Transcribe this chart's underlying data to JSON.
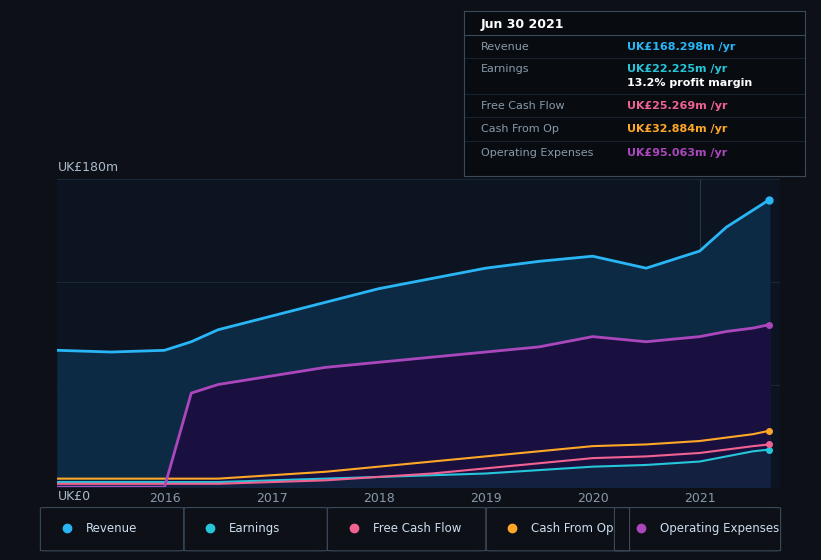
{
  "bg_color": "#0d1117",
  "plot_bg_color": "#0d1421",
  "ylabel": "UK£180m",
  "y0_label": "UK£0",
  "xlim": [
    2015.0,
    2021.75
  ],
  "ylim": [
    0,
    180
  ],
  "years": [
    2015.0,
    2015.5,
    2016.0,
    2016.25,
    2016.5,
    2017.0,
    2017.5,
    2018.0,
    2018.5,
    2019.0,
    2019.5,
    2020.0,
    2020.5,
    2021.0,
    2021.25,
    2021.5,
    2021.65
  ],
  "revenue": [
    80,
    79,
    80,
    85,
    92,
    100,
    108,
    116,
    122,
    128,
    132,
    135,
    128,
    138,
    152,
    162,
    168
  ],
  "earnings": [
    3,
    3,
    3,
    3,
    3,
    4,
    5,
    6,
    7,
    8,
    10,
    12,
    13,
    15,
    18,
    21,
    22
  ],
  "free_cash_flow": [
    2,
    2,
    2,
    2,
    2,
    3,
    4,
    6,
    8,
    11,
    14,
    17,
    18,
    20,
    22,
    24,
    25
  ],
  "cash_from_op": [
    5,
    5,
    5,
    5,
    5,
    7,
    9,
    12,
    15,
    18,
    21,
    24,
    25,
    27,
    29,
    31,
    33
  ],
  "op_expenses": [
    0,
    0,
    0,
    55,
    60,
    65,
    70,
    73,
    76,
    79,
    82,
    88,
    85,
    88,
    91,
    93,
    95
  ],
  "revenue_color": "#29b6f6",
  "earnings_color": "#26c6da",
  "free_cash_flow_color": "#f06292",
  "cash_from_op_color": "#ffa726",
  "op_expenses_color": "#ab47bc",
  "grid_color": "#1e2d3d",
  "info_box": {
    "date": "Jun 30 2021",
    "revenue_label": "Revenue",
    "revenue_value": "UK£168.298m /yr",
    "revenue_color": "#29b6f6",
    "earnings_label": "Earnings",
    "earnings_value": "UK£22.225m /yr",
    "earnings_color": "#26c6da",
    "margin_text": "13.2% profit margin",
    "fcf_label": "Free Cash Flow",
    "fcf_value": "UK£25.269m /yr",
    "fcf_color": "#f06292",
    "cfo_label": "Cash From Op",
    "cfo_value": "UK£32.884m /yr",
    "cfo_color": "#ffa726",
    "oe_label": "Operating Expenses",
    "oe_value": "UK£95.063m /yr",
    "oe_color": "#ab47bc"
  },
  "legend_items": [
    {
      "label": "Revenue",
      "color": "#29b6f6"
    },
    {
      "label": "Earnings",
      "color": "#26c6da"
    },
    {
      "label": "Free Cash Flow",
      "color": "#f06292"
    },
    {
      "label": "Cash From Op",
      "color": "#ffa726"
    },
    {
      "label": "Operating Expenses",
      "color": "#ab47bc"
    }
  ],
  "xticks": [
    2016,
    2017,
    2018,
    2019,
    2020,
    2021
  ],
  "highlight_x": 2021.0
}
